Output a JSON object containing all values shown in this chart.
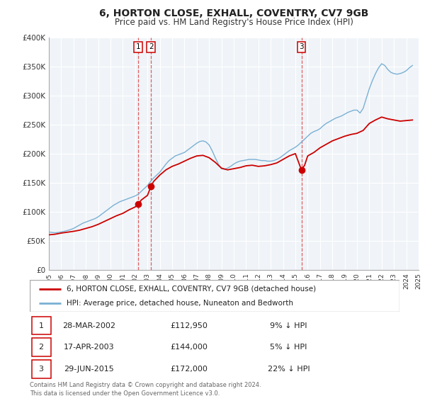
{
  "title": "6, HORTON CLOSE, EXHALL, COVENTRY, CV7 9GB",
  "subtitle": "Price paid vs. HM Land Registry's House Price Index (HPI)",
  "legend_property": "6, HORTON CLOSE, EXHALL, COVENTRY, CV7 9GB (detached house)",
  "legend_hpi": "HPI: Average price, detached house, Nuneaton and Bedworth",
  "footer1": "Contains HM Land Registry data © Crown copyright and database right 2024.",
  "footer2": "This data is licensed under the Open Government Licence v3.0.",
  "property_color": "#cc0000",
  "hpi_color": "#7ab0d4",
  "vline_color": "#dd4444",
  "transactions": [
    {
      "label": "1",
      "date": "28-MAR-2002",
      "price": "£112,950",
      "hpi_change": "9% ↓ HPI",
      "year": 2002.23
    },
    {
      "label": "2",
      "date": "17-APR-2003",
      "price": "£144,000",
      "hpi_change": "5% ↓ HPI",
      "year": 2003.29
    },
    {
      "label": "3",
      "date": "29-JUN-2015",
      "price": "£172,000",
      "hpi_change": "22% ↓ HPI",
      "year": 2015.49
    }
  ],
  "transaction_prices": [
    112950,
    144000,
    172000
  ],
  "xlim": [
    1995,
    2025
  ],
  "ylim": [
    0,
    400000
  ],
  "yticks": [
    0,
    50000,
    100000,
    150000,
    200000,
    250000,
    300000,
    350000,
    400000
  ],
  "ytick_labels": [
    "£0",
    "£50K",
    "£100K",
    "£150K",
    "£200K",
    "£250K",
    "£300K",
    "£350K",
    "£400K"
  ],
  "xticks": [
    1995,
    1996,
    1997,
    1998,
    1999,
    2000,
    2001,
    2002,
    2003,
    2004,
    2005,
    2006,
    2007,
    2008,
    2009,
    2010,
    2011,
    2012,
    2013,
    2014,
    2015,
    2016,
    2017,
    2018,
    2019,
    2020,
    2021,
    2022,
    2023,
    2024,
    2025
  ],
  "hpi_data": {
    "years": [
      1995.0,
      1995.25,
      1995.5,
      1995.75,
      1996.0,
      1996.25,
      1996.5,
      1996.75,
      1997.0,
      1997.25,
      1997.5,
      1997.75,
      1998.0,
      1998.25,
      1998.5,
      1998.75,
      1999.0,
      1999.25,
      1999.5,
      1999.75,
      2000.0,
      2000.25,
      2000.5,
      2000.75,
      2001.0,
      2001.25,
      2001.5,
      2001.75,
      2002.0,
      2002.25,
      2002.5,
      2002.75,
      2003.0,
      2003.25,
      2003.5,
      2003.75,
      2004.0,
      2004.25,
      2004.5,
      2004.75,
      2005.0,
      2005.25,
      2005.5,
      2005.75,
      2006.0,
      2006.25,
      2006.5,
      2006.75,
      2007.0,
      2007.25,
      2007.5,
      2007.75,
      2008.0,
      2008.25,
      2008.5,
      2008.75,
      2009.0,
      2009.25,
      2009.5,
      2009.75,
      2010.0,
      2010.25,
      2010.5,
      2010.75,
      2011.0,
      2011.25,
      2011.5,
      2011.75,
      2012.0,
      2012.25,
      2012.5,
      2012.75,
      2013.0,
      2013.25,
      2013.5,
      2013.75,
      2014.0,
      2014.25,
      2014.5,
      2014.75,
      2015.0,
      2015.25,
      2015.5,
      2015.75,
      2016.0,
      2016.25,
      2016.5,
      2016.75,
      2017.0,
      2017.25,
      2017.5,
      2017.75,
      2018.0,
      2018.25,
      2018.5,
      2018.75,
      2019.0,
      2019.25,
      2019.5,
      2019.75,
      2020.0,
      2020.25,
      2020.5,
      2020.75,
      2021.0,
      2021.25,
      2021.5,
      2021.75,
      2022.0,
      2022.25,
      2022.5,
      2022.75,
      2023.0,
      2023.25,
      2023.5,
      2023.75,
      2024.0,
      2024.25,
      2024.5
    ],
    "values": [
      65000,
      64000,
      63500,
      64000,
      65000,
      66000,
      67500,
      69000,
      71000,
      74000,
      77000,
      80000,
      82000,
      84000,
      86000,
      88000,
      91000,
      95000,
      99000,
      103000,
      107000,
      111000,
      114000,
      117000,
      119000,
      121000,
      123000,
      125000,
      127000,
      130000,
      135000,
      140000,
      145000,
      152000,
      158000,
      163000,
      168000,
      175000,
      182000,
      188000,
      192000,
      196000,
      198000,
      200000,
      202000,
      206000,
      210000,
      214000,
      218000,
      221000,
      222000,
      220000,
      215000,
      205000,
      193000,
      182000,
      174000,
      173000,
      175000,
      178000,
      182000,
      185000,
      187000,
      188000,
      189000,
      190000,
      190000,
      190000,
      189000,
      188000,
      188000,
      187000,
      187000,
      188000,
      190000,
      193000,
      197000,
      201000,
      205000,
      208000,
      211000,
      215000,
      220000,
      225000,
      230000,
      235000,
      238000,
      240000,
      243000,
      248000,
      252000,
      255000,
      258000,
      261000,
      263000,
      265000,
      268000,
      271000,
      273000,
      275000,
      275000,
      270000,
      278000,
      295000,
      312000,
      326000,
      338000,
      348000,
      355000,
      352000,
      345000,
      340000,
      338000,
      337000,
      338000,
      340000,
      343000,
      348000,
      352000
    ]
  },
  "property_data": {
    "years": [
      1995.0,
      1995.5,
      1996.0,
      1996.5,
      1997.0,
      1997.5,
      1998.0,
      1998.5,
      1999.0,
      1999.5,
      2000.0,
      2000.5,
      2001.0,
      2001.5,
      2002.0,
      2002.23,
      2002.5,
      2003.0,
      2003.29,
      2003.5,
      2004.0,
      2004.5,
      2005.0,
      2005.5,
      2006.0,
      2006.5,
      2007.0,
      2007.5,
      2008.0,
      2008.5,
      2009.0,
      2009.5,
      2010.0,
      2010.5,
      2011.0,
      2011.5,
      2012.0,
      2012.5,
      2013.0,
      2013.5,
      2014.0,
      2014.5,
      2015.0,
      2015.49,
      2015.75,
      2016.0,
      2016.5,
      2017.0,
      2017.5,
      2018.0,
      2018.5,
      2019.0,
      2019.5,
      2020.0,
      2020.5,
      2021.0,
      2021.5,
      2022.0,
      2022.5,
      2023.0,
      2023.5,
      2024.0,
      2024.5
    ],
    "values": [
      60000,
      61000,
      63000,
      64500,
      66000,
      68000,
      71000,
      74000,
      78000,
      83000,
      88000,
      93000,
      97000,
      103000,
      108000,
      112950,
      120000,
      128000,
      144000,
      152000,
      163000,
      172000,
      178000,
      182000,
      187000,
      192000,
      196000,
      197000,
      193000,
      185000,
      175000,
      172000,
      174000,
      176000,
      179000,
      180000,
      178000,
      179000,
      181000,
      184000,
      190000,
      196000,
      200000,
      172000,
      180000,
      196000,
      202000,
      210000,
      216000,
      222000,
      226000,
      230000,
      233000,
      235000,
      240000,
      252000,
      258000,
      263000,
      260000,
      258000,
      256000,
      257000,
      258000
    ]
  },
  "bg_color": "#f0f4f8"
}
